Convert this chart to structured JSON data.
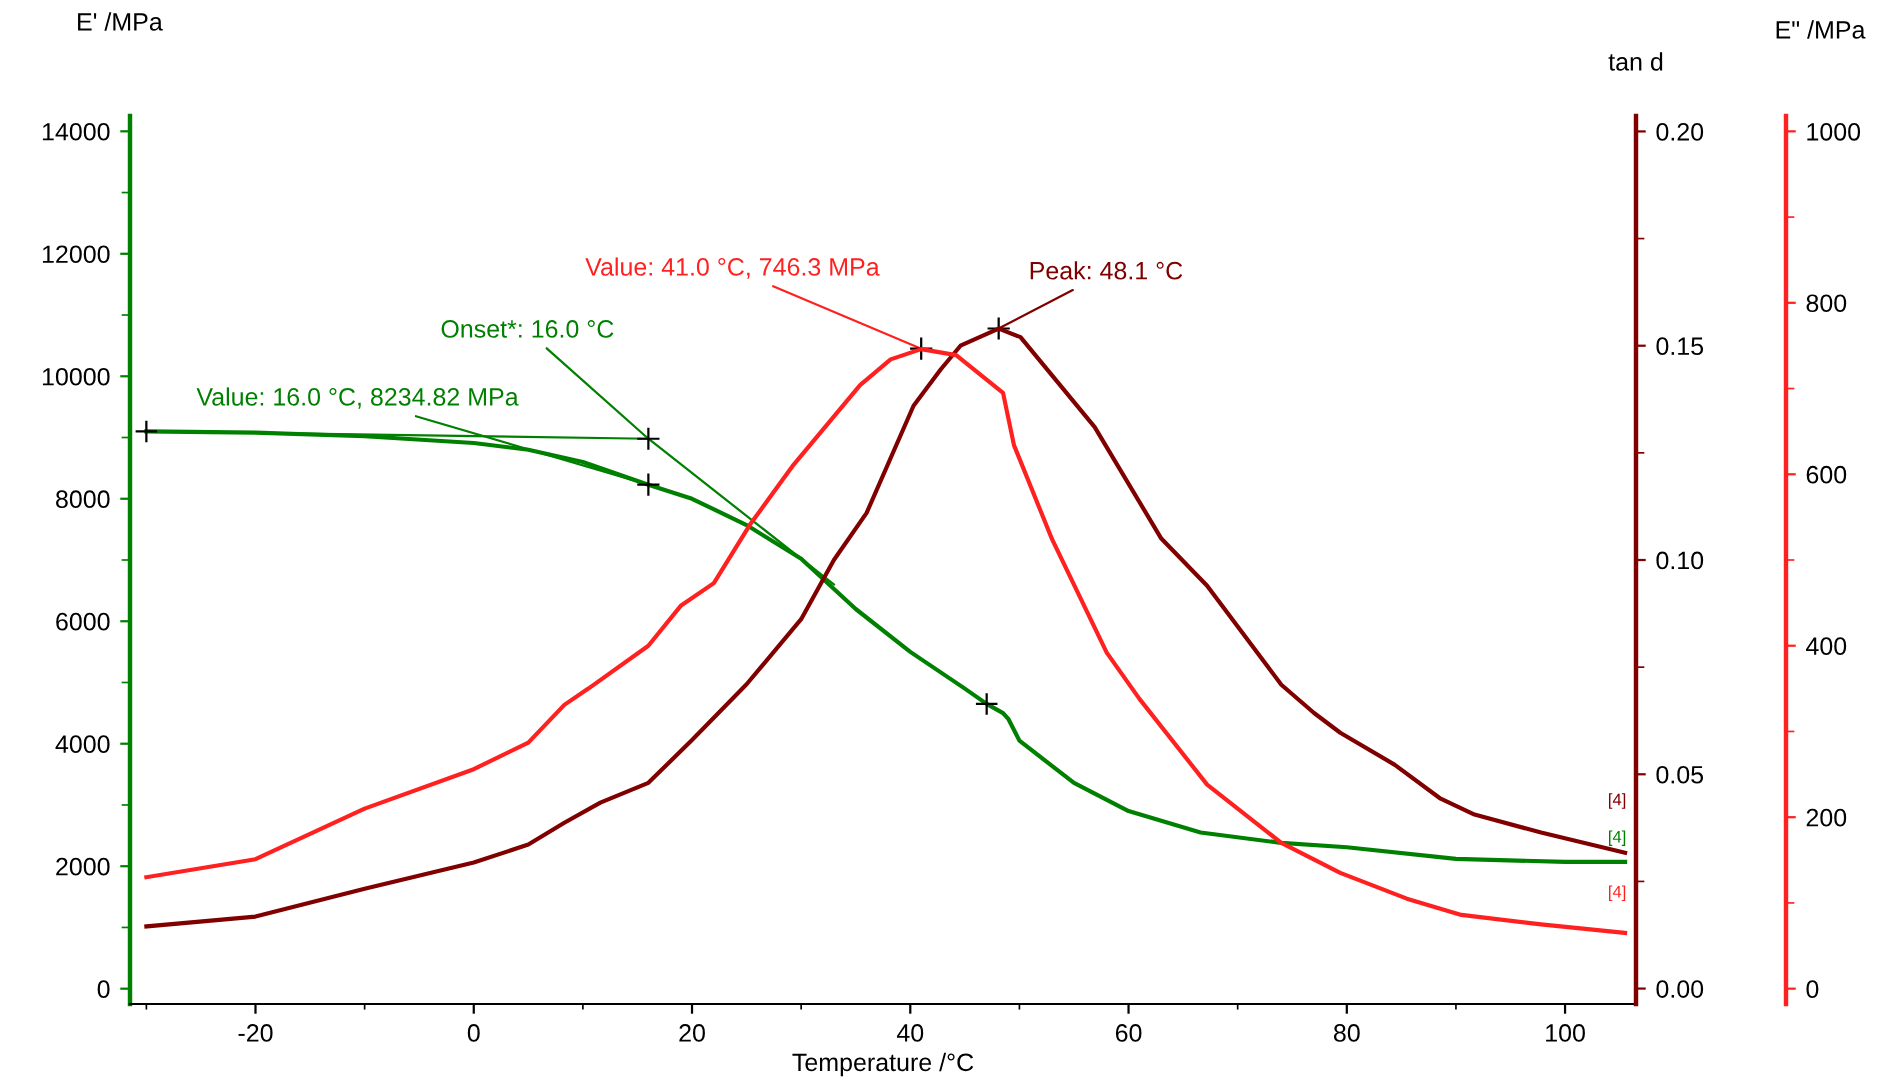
{
  "chart_data": {
    "type": "line",
    "xlabel": "Temperature /°C",
    "ylabel": "E' /MPa",
    "y2label": "tan d",
    "y3label": "E\" /MPa",
    "xlim": [
      -31.5,
      106.5
    ],
    "xticks": [
      -20,
      0,
      20,
      40,
      60,
      80,
      100
    ],
    "ylim": [
      -250,
      14250
    ],
    "yticks": [
      0,
      2000,
      4000,
      6000,
      8000,
      10000,
      12000,
      14000
    ],
    "y2lim": [
      -0.0036,
      0.2036
    ],
    "y2ticks": [
      {
        "value": 0,
        "label": "0.00"
      },
      {
        "value": 0.05,
        "label": "0.05"
      },
      {
        "value": 0.1,
        "label": "0.10"
      },
      {
        "value": 0.15,
        "label": "0.15"
      },
      {
        "value": 0.2,
        "label": "0.20"
      }
    ],
    "y3lim": [
      -17.9,
      1017.9
    ],
    "y3ticks": [
      0,
      200,
      400,
      600,
      800,
      1000
    ],
    "grid": false,
    "series": [
      {
        "color": "#008000",
        "axis": "y",
        "x": [
          -30,
          -20,
          -10,
          0,
          5,
          10,
          16,
          20,
          25,
          30,
          35,
          40,
          45,
          47,
          48.5,
          49,
          50,
          55,
          60,
          66.6,
          74,
          80,
          90,
          100,
          105.5
        ],
        "values": [
          9100,
          9080,
          9020,
          8910,
          8800,
          8600,
          8230,
          8000,
          7570,
          7020,
          6200,
          5500,
          4900,
          4650,
          4500,
          4400,
          4050,
          3360,
          2900,
          2550,
          2380,
          2310,
          2120,
          2070,
          2070
        ]
      },
      {
        "color": "#ff2020",
        "axis": "y3",
        "x": [
          -30,
          -20,
          -10,
          0,
          5,
          8.3,
          10.5,
          16,
          19,
          22,
          25.3,
          29.3,
          35.4,
          38.2,
          41,
          44.2,
          48.5,
          49.5,
          53,
          58,
          61,
          67.2,
          74,
          79.4,
          85.5,
          90.5,
          97.8,
          105.5
        ],
        "values": [
          130,
          151,
          210,
          256,
          287,
          331,
          350,
          400,
          447,
          473,
          541,
          611,
          704,
          734,
          746,
          739,
          695,
          634,
          524,
          392,
          338,
          238,
          170,
          135,
          105,
          86,
          75,
          65
        ]
      },
      {
        "color": "#800000",
        "axis": "y2",
        "x": [
          -30,
          -20,
          -10,
          0,
          5,
          8.3,
          11.6,
          16,
          20,
          25,
          30,
          33,
          36,
          40.3,
          42.8,
          44.6,
          48.1,
          50.1,
          56.9,
          63,
          67.2,
          74,
          77,
          79.4,
          84.4,
          88.6,
          91.7,
          97.8,
          105.5
        ],
        "values": [
          0.0145,
          0.0168,
          0.0233,
          0.0294,
          0.0336,
          0.0387,
          0.0434,
          0.048,
          0.058,
          0.071,
          0.0862,
          0.1,
          0.111,
          0.136,
          0.1445,
          0.15,
          0.154,
          0.152,
          0.131,
          0.105,
          0.094,
          0.0709,
          0.0643,
          0.0597,
          0.0522,
          0.0443,
          0.0406,
          0.0364,
          0.0317
        ]
      },
      {
        "color": "#008000",
        "axis": "y",
        "x": [
          -30,
          16,
          33
        ],
        "values": [
          9100,
          8980,
          6600
        ],
        "line_style": "solid"
      },
      {
        "type": "scatter",
        "marker": "cross",
        "color": "#000000",
        "axis": "y",
        "x": [
          -30,
          47
        ],
        "values": [
          9100,
          4650
        ]
      }
    ],
    "annotations": [
      {
        "text": "Value: 41.0 °C, 746.3 MPa",
        "x": 41,
        "y": 10450
      },
      {
        "text": "Peak: 48.1 °C",
        "x": 48.1,
        "y": 10780
      },
      {
        "text": "Onset*: 16.0 °C",
        "x": 16,
        "y": 8980
      },
      {
        "text": "Value: 16.0 °C, 8234.82 MPa",
        "x": 16,
        "y": 8230
      },
      "[4]",
      {
        "text": "[4]",
        "x": 105.5,
        "y": 2070
      },
      "[4]"
    ]
  }
}
